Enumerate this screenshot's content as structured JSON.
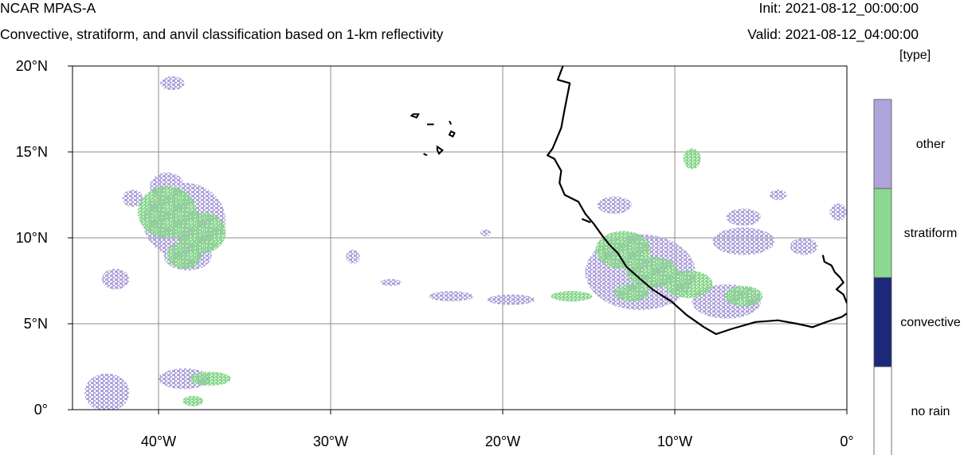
{
  "header": {
    "title": "NCAR MPAS-A",
    "subtitle": "Convective, stratiform, and anvil classification based on 1-km reflectivity",
    "init": "Init: 2021-08-12_00:00:00",
    "valid": "Valid: 2021-08-12_04:00:00",
    "units": "[type]"
  },
  "map": {
    "lon_range": [
      -45,
      0
    ],
    "lat_range": [
      0,
      20
    ],
    "x_ticks": [
      {
        "value": -40,
        "label": "40°W"
      },
      {
        "value": -30,
        "label": "30°W"
      },
      {
        "value": -20,
        "label": "20°W"
      },
      {
        "value": -10,
        "label": "10°W"
      },
      {
        "value": 0,
        "label": "0°"
      }
    ],
    "y_ticks": [
      {
        "value": 20,
        "label": "20°N"
      },
      {
        "value": 15,
        "label": "15°N"
      },
      {
        "value": 10,
        "label": "10°N"
      },
      {
        "value": 5,
        "label": "5°N"
      },
      {
        "value": 0,
        "label": "0°"
      }
    ],
    "grid_lon": [
      -40,
      -30,
      -20,
      -10
    ],
    "grid_lat": [
      5,
      10,
      15
    ],
    "colors": {
      "other": "#b0a4dc",
      "stratiform": "#8cd890",
      "convective": "#1c2878",
      "no_rain": "#ffffff",
      "coast": "#000000",
      "grid": "#8c8c8c"
    },
    "coastline": {
      "west_africa": [
        [
          -16.5,
          20
        ],
        [
          -16.8,
          19.2
        ],
        [
          -16.1,
          19
        ],
        [
          -16.4,
          17.5
        ],
        [
          -16.6,
          16.4
        ],
        [
          -17.1,
          15.2
        ],
        [
          -17.4,
          14.8
        ],
        [
          -17,
          14.6
        ],
        [
          -16.6,
          13.9
        ],
        [
          -16.7,
          13.2
        ],
        [
          -16.4,
          12.5
        ],
        [
          -15.6,
          12.1
        ],
        [
          -15.2,
          11.4
        ],
        [
          -14.7,
          10.8
        ],
        [
          -14.2,
          10.1
        ],
        [
          -13.8,
          9.6
        ],
        [
          -13.3,
          9.1
        ],
        [
          -12.8,
          8.3
        ],
        [
          -12,
          7.6
        ],
        [
          -11.3,
          7.0
        ],
        [
          -10.2,
          6.3
        ],
        [
          -9.3,
          5.5
        ],
        [
          -8.3,
          4.8
        ],
        [
          -7.6,
          4.4
        ],
        [
          -6.7,
          4.7
        ],
        [
          -5.3,
          5.1
        ],
        [
          -4,
          5.2
        ],
        [
          -2.9,
          5.0
        ],
        [
          -2.0,
          4.8
        ],
        [
          -1.2,
          5.1
        ],
        [
          -0.3,
          5.4
        ],
        [
          0,
          5.6
        ]
      ],
      "gulf_guinea_east": [
        [
          -1.4,
          9.0
        ],
        [
          -1.3,
          8.6
        ],
        [
          -0.9,
          8.4
        ],
        [
          -0.7,
          8.0
        ],
        [
          -0.4,
          7.7
        ],
        [
          -0.2,
          7.4
        ],
        [
          -0.6,
          7.0
        ],
        [
          -0.2,
          6.7
        ],
        [
          0,
          6.2
        ]
      ],
      "bijagos": [
        [
          -15.4,
          11.1
        ],
        [
          -14.9,
          10.9
        ]
      ],
      "cape_verde": [
        [
          [
            -25.3,
            17.1
          ],
          [
            -25.0,
            17.0
          ],
          [
            -24.9,
            17.2
          ],
          [
            -25.2,
            17.2
          ]
        ],
        [
          [
            -24.4,
            16.6
          ],
          [
            -24.0,
            16.6
          ]
        ],
        [
          [
            -23.1,
            16.8
          ],
          [
            -23.0,
            16.6
          ]
        ],
        [
          [
            -23.0,
            16.2
          ],
          [
            -22.8,
            16.1
          ],
          [
            -22.9,
            15.9
          ],
          [
            -23.1,
            16.0
          ]
        ],
        [
          [
            -24.6,
            14.9
          ],
          [
            -24.4,
            14.8
          ]
        ],
        [
          [
            -23.8,
            15.3
          ],
          [
            -23.5,
            15.1
          ],
          [
            -23.7,
            14.9
          ],
          [
            -23.8,
            15.1
          ]
        ]
      ]
    },
    "precip_regions": {
      "stratiform": [
        {
          "lon": -39.5,
          "lat": 11.5,
          "rx": 1.7,
          "ry": 1.5
        },
        {
          "lon": -37.5,
          "lat": 10.3,
          "rx": 1.4,
          "ry": 1.2
        },
        {
          "lon": -38.5,
          "lat": 9.0,
          "rx": 1.0,
          "ry": 0.8
        },
        {
          "lon": -13.0,
          "lat": 9.3,
          "rx": 1.6,
          "ry": 1.1
        },
        {
          "lon": -11.3,
          "lat": 8.0,
          "rx": 1.5,
          "ry": 0.9
        },
        {
          "lon": -9.2,
          "lat": 7.3,
          "rx": 1.4,
          "ry": 0.8
        },
        {
          "lon": -12.5,
          "lat": 6.8,
          "rx": 1.0,
          "ry": 0.5
        },
        {
          "lon": -6.0,
          "lat": 6.6,
          "rx": 1.1,
          "ry": 0.6
        },
        {
          "lon": -9.0,
          "lat": 14.6,
          "rx": 0.5,
          "ry": 0.6
        },
        {
          "lon": -16.0,
          "lat": 6.6,
          "rx": 1.2,
          "ry": 0.3
        },
        {
          "lon": -37.0,
          "lat": 1.8,
          "rx": 1.2,
          "ry": 0.4
        },
        {
          "lon": -38.0,
          "lat": 0.5,
          "rx": 0.6,
          "ry": 0.3
        }
      ],
      "other": [
        {
          "lon": -38.5,
          "lat": 11.0,
          "rx": 2.4,
          "ry": 2.2
        },
        {
          "lon": -38.3,
          "lat": 9.0,
          "rx": 1.4,
          "ry": 0.9
        },
        {
          "lon": -12.0,
          "lat": 8.0,
          "rx": 3.2,
          "ry": 2.2
        },
        {
          "lon": -7.0,
          "lat": 6.3,
          "rx": 2.0,
          "ry": 1.0
        },
        {
          "lon": -6.0,
          "lat": 9.8,
          "rx": 1.8,
          "ry": 0.8
        },
        {
          "lon": -6.0,
          "lat": 11.2,
          "rx": 1.0,
          "ry": 0.5
        },
        {
          "lon": -38.5,
          "lat": 1.8,
          "rx": 1.5,
          "ry": 0.6
        },
        {
          "lon": -43.0,
          "lat": 1.0,
          "rx": 1.3,
          "ry": 1.1
        },
        {
          "lon": -39.2,
          "lat": 19.0,
          "rx": 0.7,
          "ry": 0.4
        },
        {
          "lon": -23.0,
          "lat": 6.6,
          "rx": 1.3,
          "ry": 0.3
        },
        {
          "lon": -19.5,
          "lat": 6.4,
          "rx": 1.4,
          "ry": 0.3
        },
        {
          "lon": -42.5,
          "lat": 7.6,
          "rx": 0.8,
          "ry": 0.6
        },
        {
          "lon": -28.7,
          "lat": 8.9,
          "rx": 0.4,
          "ry": 0.4
        },
        {
          "lon": -13.5,
          "lat": 11.9,
          "rx": 1.0,
          "ry": 0.5
        },
        {
          "lon": -2.5,
          "lat": 9.5,
          "rx": 0.8,
          "ry": 0.5
        },
        {
          "lon": -4.0,
          "lat": 12.5,
          "rx": 0.5,
          "ry": 0.3
        },
        {
          "lon": -0.5,
          "lat": 11.5,
          "rx": 0.5,
          "ry": 0.5
        },
        {
          "lon": -26.5,
          "lat": 7.4,
          "rx": 0.6,
          "ry": 0.2
        },
        {
          "lon": -21.0,
          "lat": 10.3,
          "rx": 0.3,
          "ry": 0.2
        },
        {
          "lon": -39.5,
          "lat": 13.0,
          "rx": 1.0,
          "ry": 0.8
        },
        {
          "lon": -41.5,
          "lat": 12.3,
          "rx": 0.6,
          "ry": 0.5
        }
      ]
    }
  },
  "colorbar": {
    "entries": [
      {
        "label": "other",
        "color": "#b0a4dc"
      },
      {
        "label": "stratiform",
        "color": "#8cd890"
      },
      {
        "label": "convective",
        "color": "#1c2878"
      },
      {
        "label": "no rain",
        "color": "#ffffff"
      }
    ]
  }
}
